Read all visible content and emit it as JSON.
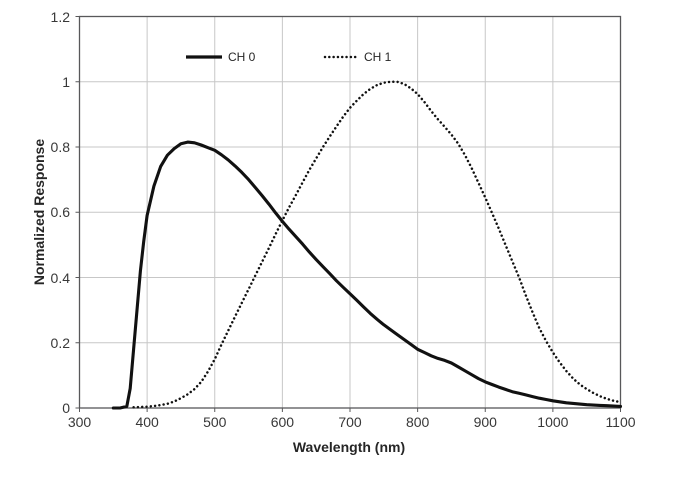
{
  "figure": {
    "colors": {
      "background": "#ffffff",
      "line": "#111111",
      "grid": "#c7c7c7",
      "border": "#58585a",
      "tick_text": "#383838",
      "title_text": "#262626"
    },
    "legend": [
      {
        "label": "CH 0",
        "style": "solid"
      },
      {
        "label": "CH 1",
        "style": "dotted"
      }
    ]
  },
  "chart_data": {
    "type": "line",
    "title": "",
    "xlabel": "Wavelength (nm)",
    "ylabel": "Normalized Response",
    "xlim": [
      300,
      1100
    ],
    "ylim": [
      0,
      1.2
    ],
    "grid": true,
    "legend_position": "top-center-inside",
    "x_ticks": [
      300,
      400,
      500,
      600,
      700,
      800,
      900,
      1000,
      1100
    ],
    "x_tick_labels": [
      "300",
      "400",
      "500",
      "600",
      "700",
      "800",
      "900",
      "1000",
      "1100"
    ],
    "y_ticks": [
      0,
      0.2,
      0.4,
      0.6,
      0.8,
      1,
      1.2
    ],
    "y_tick_labels": [
      "0",
      "0.2",
      "0.4",
      "0.6",
      "0.8",
      "1",
      "1.2"
    ],
    "series": [
      {
        "name": "CH 0",
        "style": "solid",
        "x": [
          350,
          360,
          370,
          375,
          380,
          385,
          390,
          395,
          400,
          410,
          420,
          430,
          440,
          450,
          460,
          470,
          480,
          490,
          500,
          510,
          520,
          530,
          540,
          550,
          560,
          570,
          580,
          590,
          600,
          610,
          620,
          630,
          640,
          650,
          660,
          670,
          680,
          690,
          700,
          710,
          720,
          730,
          740,
          750,
          760,
          770,
          780,
          790,
          800,
          810,
          820,
          830,
          840,
          850,
          860,
          870,
          880,
          890,
          900,
          910,
          920,
          930,
          940,
          950,
          960,
          970,
          980,
          990,
          1000,
          1010,
          1020,
          1030,
          1040,
          1050,
          1060,
          1070,
          1080,
          1090,
          1100
        ],
        "y": [
          0,
          0,
          0.005,
          0.06,
          0.18,
          0.3,
          0.42,
          0.51,
          0.59,
          0.68,
          0.74,
          0.775,
          0.795,
          0.81,
          0.815,
          0.813,
          0.806,
          0.798,
          0.79,
          0.776,
          0.76,
          0.742,
          0.722,
          0.7,
          0.676,
          0.651,
          0.625,
          0.598,
          0.572,
          0.548,
          0.525,
          0.502,
          0.478,
          0.455,
          0.433,
          0.412,
          0.39,
          0.37,
          0.35,
          0.33,
          0.31,
          0.29,
          0.272,
          0.255,
          0.24,
          0.225,
          0.21,
          0.195,
          0.18,
          0.17,
          0.16,
          0.152,
          0.146,
          0.138,
          0.126,
          0.114,
          0.102,
          0.09,
          0.08,
          0.072,
          0.064,
          0.057,
          0.05,
          0.045,
          0.04,
          0.035,
          0.03,
          0.026,
          0.022,
          0.019,
          0.016,
          0.014,
          0.012,
          0.01,
          0.009,
          0.008,
          0.007,
          0.006,
          0.005
        ]
      },
      {
        "name": "CH 1",
        "style": "dotted",
        "x": [
          380,
          390,
          400,
          410,
          420,
          430,
          440,
          450,
          460,
          470,
          480,
          490,
          500,
          510,
          520,
          530,
          540,
          550,
          560,
          570,
          580,
          590,
          600,
          610,
          620,
          630,
          640,
          650,
          660,
          670,
          680,
          690,
          700,
          710,
          720,
          730,
          740,
          750,
          760,
          770,
          780,
          790,
          800,
          810,
          820,
          830,
          840,
          850,
          860,
          870,
          880,
          890,
          900,
          910,
          920,
          930,
          940,
          950,
          960,
          970,
          980,
          990,
          1000,
          1010,
          1020,
          1030,
          1040,
          1050,
          1060,
          1070,
          1080,
          1090,
          1100
        ],
        "y": [
          0.002,
          0.003,
          0.004,
          0.006,
          0.009,
          0.013,
          0.02,
          0.03,
          0.042,
          0.058,
          0.08,
          0.112,
          0.15,
          0.195,
          0.238,
          0.28,
          0.322,
          0.364,
          0.406,
          0.448,
          0.49,
          0.533,
          0.575,
          0.615,
          0.653,
          0.692,
          0.73,
          0.765,
          0.8,
          0.832,
          0.863,
          0.893,
          0.92,
          0.942,
          0.962,
          0.978,
          0.99,
          0.997,
          1.0,
          1.0,
          0.993,
          0.98,
          0.962,
          0.938,
          0.91,
          0.885,
          0.862,
          0.838,
          0.81,
          0.775,
          0.735,
          0.69,
          0.645,
          0.598,
          0.55,
          0.5,
          0.45,
          0.4,
          0.345,
          0.293,
          0.245,
          0.205,
          0.17,
          0.14,
          0.113,
          0.09,
          0.072,
          0.058,
          0.046,
          0.036,
          0.028,
          0.022,
          0.018
        ]
      }
    ]
  }
}
